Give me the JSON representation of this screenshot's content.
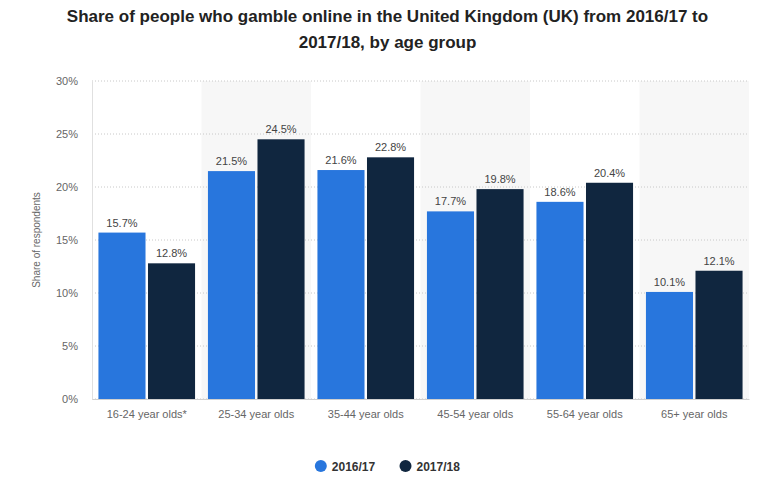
{
  "chart_data": {
    "type": "bar",
    "title": "Share of people who gamble online in the United Kingdom (UK) from 2016/17 to 2017/18, by age group",
    "y_label": "Share of respondents",
    "categories": [
      "16-24 year olds*",
      "25-34 year olds",
      "35-44 year olds",
      "45-54 year olds",
      "55-64 year olds",
      "65+ year olds"
    ],
    "series": [
      {
        "name": "2016/17",
        "color": "#2876dd",
        "values": [
          15.7,
          21.5,
          21.6,
          17.7,
          18.6,
          10.1
        ],
        "value_labels": [
          "15.7%",
          "21.5%",
          "21.6%",
          "17.7%",
          "18.6%",
          "10.1%"
        ]
      },
      {
        "name": "2017/18",
        "color": "#10263f",
        "values": [
          12.8,
          24.5,
          22.8,
          19.8,
          20.4,
          12.1
        ],
        "value_labels": [
          "12.8%",
          "24.5%",
          "22.8%",
          "19.8%",
          "20.4%",
          "12.1%"
        ]
      }
    ],
    "ylim": [
      0,
      30
    ],
    "yticks": [
      {
        "value": 0,
        "label": "0%"
      },
      {
        "value": 5,
        "label": "5%"
      },
      {
        "value": 10,
        "label": "10%"
      },
      {
        "value": 15,
        "label": "15%"
      },
      {
        "value": 20,
        "label": "20%"
      },
      {
        "value": 25,
        "label": "25%"
      },
      {
        "value": 30,
        "label": "30%"
      }
    ],
    "grid": true,
    "data_labels": true,
    "legend": "bottom"
  }
}
